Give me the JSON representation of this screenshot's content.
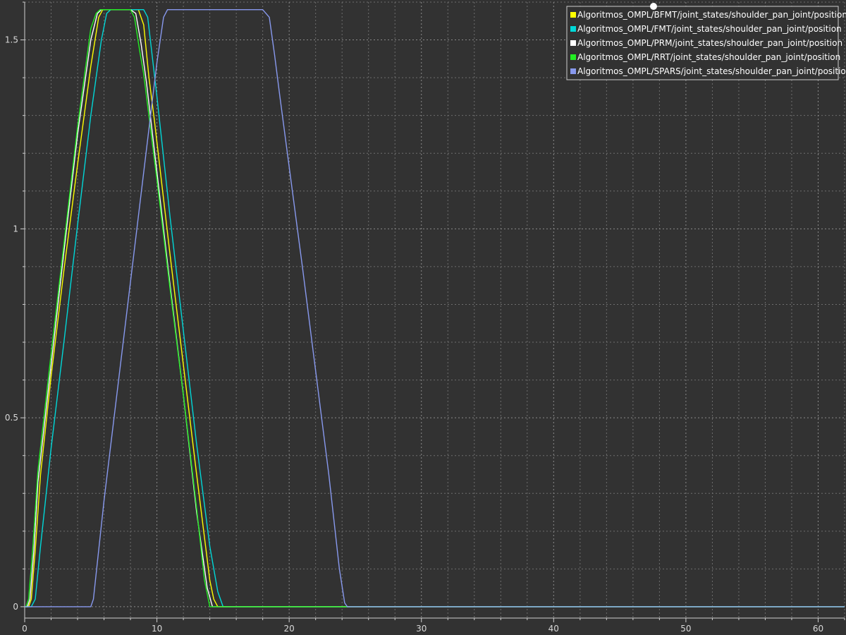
{
  "chart_data": {
    "type": "line",
    "title": "",
    "xlabel": "",
    "ylabel": "",
    "xlim": [
      0,
      62
    ],
    "ylim": [
      -0.03,
      1.6
    ],
    "x_ticks": [
      0,
      10,
      20,
      30,
      40,
      50,
      60
    ],
    "y_ticks": [
      0,
      0.5,
      1,
      1.5
    ],
    "x_tick_labels": [
      "0",
      "10",
      "20",
      "30",
      "40",
      "50",
      "60"
    ],
    "y_tick_labels": [
      "0",
      "0.5",
      "1",
      "1.5"
    ],
    "grid": true,
    "legend_position": "top-right",
    "background_color": "#323232",
    "series": [
      {
        "name": "Algoritmos_OMPL/BFMT/joint_states/shoulder_pan_joint/position",
        "color": "#ffff00",
        "x": [
          0,
          0.3,
          0.5,
          0.8,
          1.2,
          2,
          3,
          4,
          5,
          5.6,
          5.9,
          6.1,
          6.5,
          7,
          8,
          8.6,
          9,
          9.4,
          9.8,
          11,
          12,
          13,
          14,
          14.3,
          14.6,
          14.8,
          16,
          20,
          30,
          40,
          50,
          60,
          62
        ],
        "y": [
          0,
          0,
          0.02,
          0.15,
          0.35,
          0.61,
          0.9,
          1.17,
          1.43,
          1.56,
          1.58,
          1.58,
          1.58,
          1.58,
          1.58,
          1.58,
          1.54,
          1.4,
          1.29,
          0.93,
          0.64,
          0.35,
          0.07,
          0.02,
          0,
          0,
          0,
          0,
          0,
          0,
          0,
          0,
          0
        ]
      },
      {
        "name": "Algoritmos_OMPL/FMT/joint_states/shoulder_pan_joint/position",
        "color": "#00d8d8",
        "x": [
          0,
          0.5,
          0.8,
          1.2,
          2,
          3,
          4,
          5,
          5.8,
          6.2,
          6.5,
          7,
          8,
          9,
          9.3,
          9.7,
          10,
          11,
          12,
          13,
          14,
          14.6,
          15,
          15.2,
          16,
          20,
          30,
          40,
          50,
          60,
          62
        ],
        "y": [
          0,
          0,
          0.02,
          0.16,
          0.42,
          0.71,
          1.01,
          1.3,
          1.5,
          1.57,
          1.58,
          1.58,
          1.58,
          1.58,
          1.56,
          1.44,
          1.35,
          1.03,
          0.73,
          0.43,
          0.16,
          0.04,
          0,
          0,
          0,
          0,
          0,
          0,
          0,
          0,
          0
        ]
      },
      {
        "name": "Algoritmos_OMPL/PRM/joint_states/shoulder_pan_joint/position",
        "color": "#ffffff",
        "x": [
          0,
          0.2,
          0.4,
          0.7,
          1,
          2,
          3,
          4,
          5,
          5.5,
          5.8,
          6,
          7,
          8,
          8.4,
          8.8,
          9.2,
          10,
          11,
          12,
          13,
          13.8,
          14.2,
          14.5,
          16,
          20,
          30,
          40,
          50,
          60,
          62
        ],
        "y": [
          0,
          0,
          0.02,
          0.15,
          0.33,
          0.64,
          0.95,
          1.25,
          1.5,
          1.57,
          1.58,
          1.58,
          1.58,
          1.58,
          1.57,
          1.49,
          1.39,
          1.15,
          0.85,
          0.56,
          0.25,
          0.05,
          0,
          0,
          0,
          0,
          0,
          0,
          0,
          0,
          0
        ]
      },
      {
        "name": "Algoritmos_OMPL/RRT/joint_states/shoulder_pan_joint/position",
        "color": "#22ee22",
        "x": [
          0,
          0.1,
          0.3,
          0.6,
          1,
          2,
          3,
          4,
          5,
          5.4,
          5.7,
          6,
          7,
          8,
          8.3,
          8.7,
          9,
          10,
          11,
          12,
          13,
          13.6,
          14,
          14.3,
          16,
          20,
          30,
          40,
          50,
          60,
          62
        ],
        "y": [
          0,
          0,
          0.02,
          0.15,
          0.36,
          0.67,
          0.97,
          1.27,
          1.53,
          1.57,
          1.58,
          1.58,
          1.58,
          1.58,
          1.56,
          1.47,
          1.41,
          1.13,
          0.84,
          0.56,
          0.26,
          0.07,
          0,
          0,
          0,
          0,
          0,
          0,
          0,
          0,
          0
        ]
      },
      {
        "name": "Algoritmos_OMPL/SPARS/joint_states/shoulder_pan_joint/position",
        "color": "#8899ee",
        "x": [
          0,
          5,
          5.2,
          5.6,
          6,
          8,
          10,
          10.5,
          10.8,
          11.1,
          14,
          18,
          18.5,
          18.9,
          19.3,
          21,
          23,
          23.8,
          24.2,
          24.4,
          30,
          40,
          50,
          60,
          62
        ],
        "y": [
          0,
          0,
          0.02,
          0.15,
          0.28,
          0.86,
          1.44,
          1.56,
          1.58,
          1.58,
          1.58,
          1.58,
          1.56,
          1.46,
          1.35,
          0.9,
          0.35,
          0.1,
          0.01,
          0,
          0,
          0,
          0,
          0,
          0
        ]
      }
    ]
  }
}
